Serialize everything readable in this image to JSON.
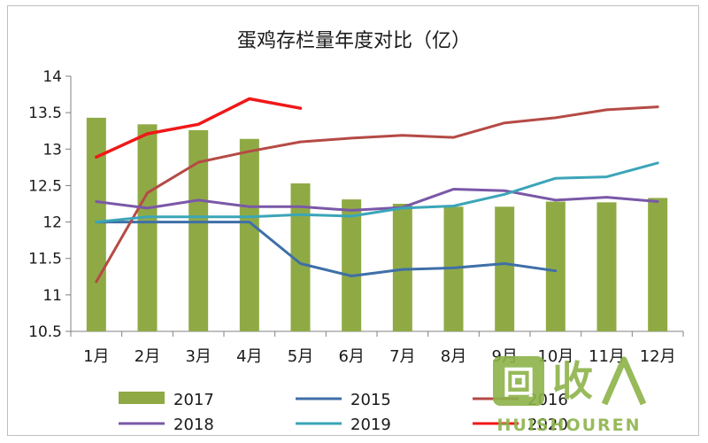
{
  "chart_data": {
    "type": "bar",
    "title": "蛋鸡存栏量年度对比（亿）",
    "categories": [
      "1月",
      "2月",
      "3月",
      "4月",
      "5月",
      "6月",
      "7月",
      "8月",
      "9月",
      "10月",
      "11月",
      "12月"
    ],
    "ylim": [
      10.5,
      14
    ],
    "yticks": [
      "10.5",
      "11",
      "11.5",
      "12",
      "12.5",
      "13",
      "13.5",
      "14"
    ],
    "ytick_values": [
      10.5,
      11,
      11.5,
      12,
      12.5,
      13,
      13.5,
      14
    ],
    "grid": false,
    "legend_position": "bottom",
    "bar_series": {
      "name": "2017",
      "color": "#8faa45",
      "values": [
        13.43,
        13.34,
        13.26,
        13.14,
        12.53,
        12.31,
        12.25,
        12.21,
        12.21,
        12.28,
        12.27,
        12.33
      ]
    },
    "line_series": [
      {
        "name": "2015",
        "color": "#3e6fa8",
        "values": [
          12.0,
          12.0,
          12.0,
          12.0,
          11.43,
          11.26,
          11.35,
          11.37,
          11.43,
          11.33,
          null,
          null
        ]
      },
      {
        "name": "2016",
        "color": "#b54a45",
        "values": [
          11.18,
          12.4,
          12.82,
          12.97,
          13.1,
          13.15,
          13.19,
          13.16,
          13.36,
          13.43,
          13.54,
          13.58
        ]
      },
      {
        "name": "2018",
        "color": "#7a58a8",
        "values": [
          12.28,
          12.19,
          12.3,
          12.21,
          12.21,
          12.16,
          12.2,
          12.45,
          12.43,
          12.3,
          12.34,
          12.28
        ]
      },
      {
        "name": "2019",
        "color": "#3ba5b8",
        "values": [
          12.0,
          12.07,
          12.07,
          12.07,
          12.1,
          12.08,
          12.19,
          12.22,
          12.38,
          12.6,
          12.62,
          12.81
        ]
      },
      {
        "name": "2020",
        "color": "#f01818",
        "values": [
          12.89,
          13.21,
          13.34,
          13.69,
          13.56,
          null,
          null,
          null,
          null,
          null,
          null,
          null
        ]
      }
    ],
    "legend": [
      {
        "name": "2017",
        "kind": "bar",
        "color": "#8faa45"
      },
      {
        "name": "2015",
        "kind": "line",
        "color": "#3e6fa8"
      },
      {
        "name": "2016",
        "kind": "line",
        "color": "#b54a45"
      },
      {
        "name": "2018",
        "kind": "line",
        "color": "#7a58a8"
      },
      {
        "name": "2019",
        "kind": "line",
        "color": "#3ba5b8"
      },
      {
        "name": "2020",
        "kind": "line",
        "color": "#f01818"
      }
    ]
  },
  "watermark": {
    "logo_text": "回收",
    "sub_text": "HUISHOUREN",
    "color": "#8db34a"
  }
}
